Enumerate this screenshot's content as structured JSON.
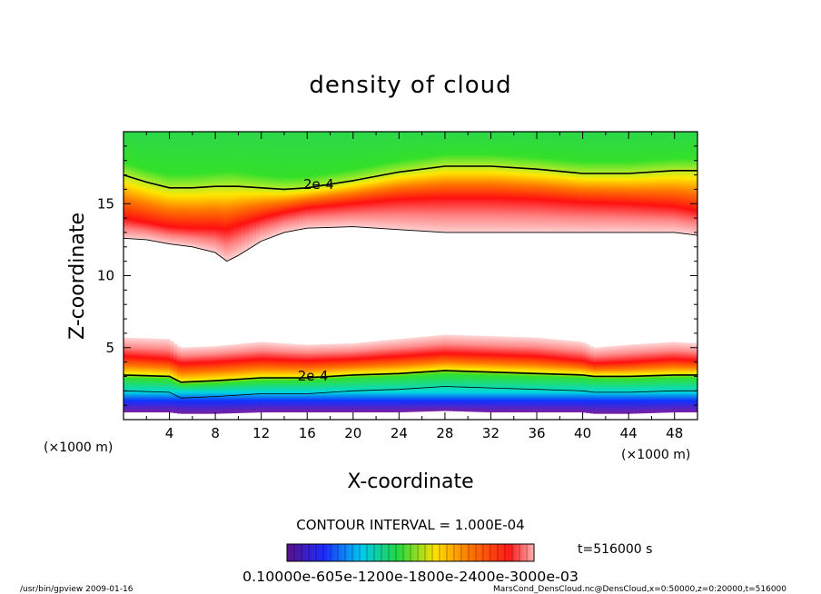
{
  "chart_data": {
    "type": "heatmap",
    "title": "density of cloud",
    "xlabel": "X-coordinate",
    "ylabel": "Z-coordinate",
    "x_unit": "(×1000 m)",
    "y_unit": "(×1000 m)",
    "xlim": [
      0,
      50
    ],
    "ylim": [
      0,
      20
    ],
    "x_ticks": [
      "4",
      "8",
      "12",
      "16",
      "20",
      "24",
      "28",
      "32",
      "36",
      "40",
      "44",
      "48"
    ],
    "y_ticks": [
      "5",
      "10",
      "15"
    ],
    "contour_interval_text": "CONTOUR INTERVAL = 1.000E-04",
    "contour_labels": [
      {
        "text": "2e-4",
        "x": 17,
        "z": 16.2
      },
      {
        "text": "2e-4",
        "x": 16.5,
        "z": 2.9
      }
    ],
    "colorbar_label": "0.10000e-605e-1200e-1800e-2400e-3000e-03",
    "time_label": "t=516000 s",
    "upper_layer": {
      "x": [
        0,
        2,
        4,
        6,
        8,
        9,
        10,
        12,
        14,
        16,
        20,
        24,
        28,
        32,
        36,
        40,
        44,
        48,
        50
      ],
      "bottom": [
        12.6,
        12.5,
        12.2,
        12.0,
        11.6,
        11.0,
        11.4,
        12.4,
        13.0,
        13.3,
        13.4,
        13.2,
        13.0,
        13.0,
        13.0,
        13.0,
        13.0,
        13.0,
        12.8
      ],
      "peak": [
        14.0,
        13.7,
        13.4,
        13.3,
        13.3,
        13.2,
        13.5,
        14.0,
        14.4,
        14.7,
        15.0,
        15.3,
        15.4,
        15.4,
        15.3,
        15.1,
        15.0,
        14.8,
        14.5
      ],
      "contour_2e4": [
        17.0,
        16.5,
        16.1,
        16.1,
        16.2,
        16.2,
        16.2,
        16.1,
        16.0,
        16.1,
        16.6,
        17.2,
        17.6,
        17.6,
        17.4,
        17.1,
        17.1,
        17.3,
        17.3
      ]
    },
    "lower_layer": {
      "x": [
        0,
        4,
        5,
        8,
        12,
        16,
        20,
        24,
        28,
        32,
        36,
        40,
        41,
        44,
        48,
        50
      ],
      "top": [
        5.7,
        5.6,
        5.0,
        5.1,
        5.4,
        5.2,
        5.3,
        5.6,
        5.9,
        5.8,
        5.7,
        5.4,
        5.0,
        5.2,
        5.4,
        5.3
      ],
      "peak": [
        4.4,
        4.2,
        3.9,
        4.0,
        4.2,
        4.1,
        4.2,
        4.4,
        4.6,
        4.5,
        4.4,
        4.1,
        3.9,
        4.0,
        4.2,
        4.1
      ],
      "contour_2e4": [
        3.1,
        3.0,
        2.6,
        2.7,
        2.9,
        2.9,
        3.1,
        3.2,
        3.4,
        3.3,
        3.2,
        3.1,
        3.0,
        3.0,
        3.1,
        3.1
      ],
      "base": [
        0.5,
        0.5,
        0.4,
        0.4,
        0.5,
        0.5,
        0.5,
        0.5,
        0.6,
        0.5,
        0.5,
        0.5,
        0.4,
        0.4,
        0.5,
        0.5
      ]
    }
  },
  "footer": {
    "left": "/usr/bin/gpview   2009-01-16",
    "right": "MarsCond_DensCloud.nc@DensCloud,x=0:50000,z=0:20000,t=516000"
  },
  "colors": {
    "white": "#ffffff",
    "green": "#33e02a",
    "yellow": "#ffe600",
    "orange": "#ff7a00",
    "red": "#ff1010",
    "cyan": "#00d8e0",
    "blue": "#1030ff",
    "purple": "#7a1fa2"
  }
}
